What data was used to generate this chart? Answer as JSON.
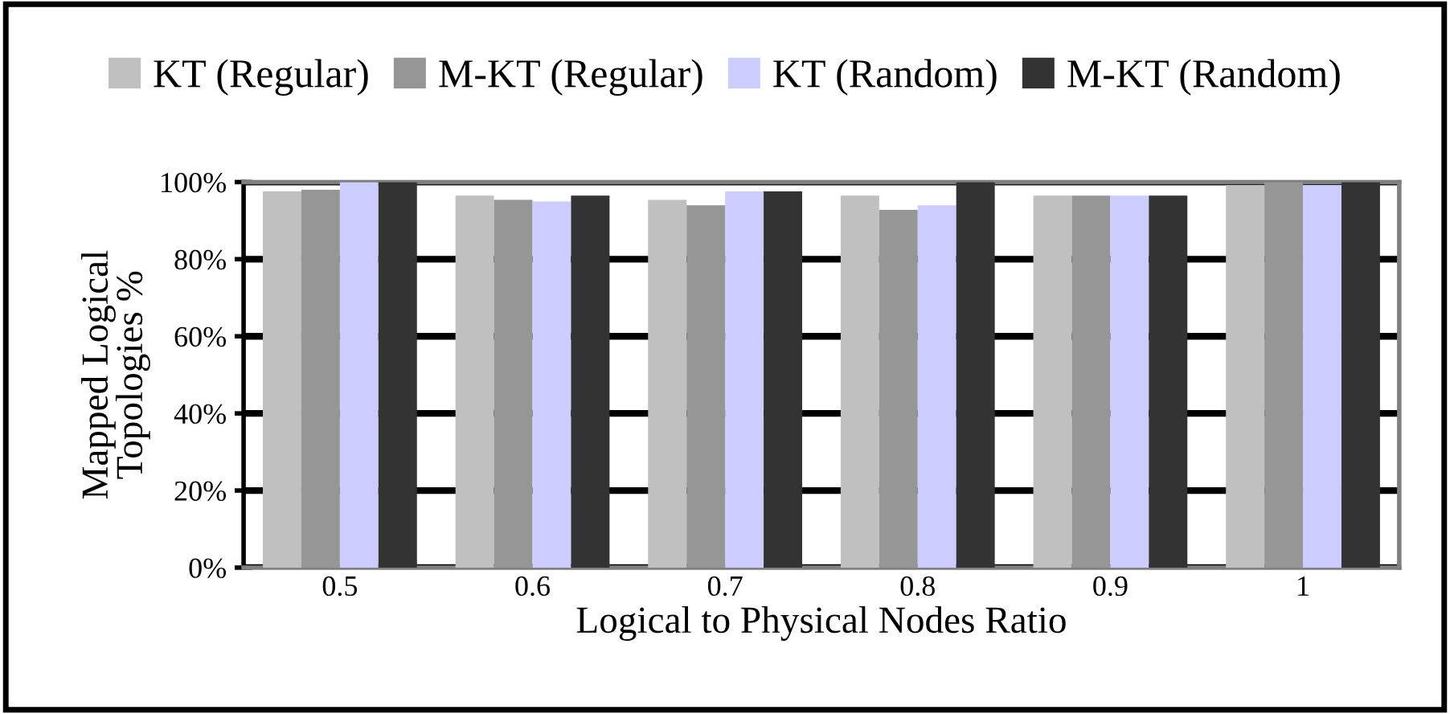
{
  "chart_data": {
    "type": "bar",
    "xlabel": "Logical to Physical Nodes Ratio",
    "ylabel": "Mapped Logical\nTopologies %",
    "categories": [
      "0.5",
      "0.6",
      "0.7",
      "0.8",
      "0.9",
      "1"
    ],
    "series": [
      {
        "name": "KT (Regular)",
        "color": "#c0c0c0",
        "values": [
          97.6,
          96.5,
          95.4,
          96.5,
          96.5,
          99.2
        ]
      },
      {
        "name": "M-KT (Regular)",
        "color": "#969696",
        "values": [
          98,
          95.4,
          94,
          92.8,
          96.5,
          100
        ]
      },
      {
        "name": "KT (Random)",
        "color": "#ccccff",
        "values": [
          100,
          95,
          97.6,
          94,
          96.5,
          99.2
        ]
      },
      {
        "name": "M-KT (Random)",
        "color": "#333333",
        "values": [
          100,
          96.5,
          97.6,
          100,
          96.5,
          100
        ]
      }
    ],
    "ylim": [
      0,
      100
    ],
    "yticks": [
      {
        "value": 0,
        "label": "0%"
      },
      {
        "value": 20,
        "label": "20%"
      },
      {
        "value": 40,
        "label": "40%"
      },
      {
        "value": 60,
        "label": "60%"
      },
      {
        "value": 80,
        "label": "80%"
      },
      {
        "value": 100,
        "label": "100%"
      }
    ],
    "grid": "y",
    "legend": "top"
  }
}
